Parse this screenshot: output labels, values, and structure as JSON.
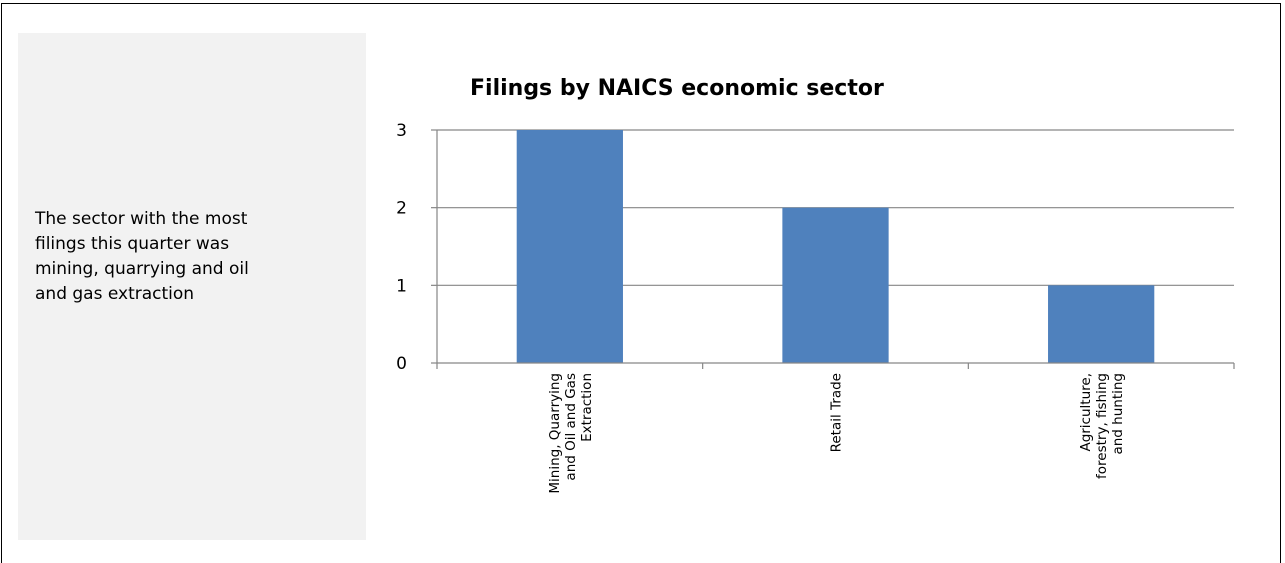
{
  "side_note": {
    "lines": [
      "The sector with the most",
      "filings this quarter was",
      "mining, quarrying and oil",
      "and gas extraction"
    ]
  },
  "chart_data": {
    "type": "bar",
    "title": "Filings by NAICS economic sector",
    "categories": [
      [
        "Mining, Quarrying",
        "and Oil and Gas",
        "Extraction"
      ],
      [
        "Retail Trade"
      ],
      [
        "Agriculture,",
        "forestry, fishing",
        "and hunting"
      ]
    ],
    "values": [
      3,
      2,
      1
    ],
    "ylim": [
      0,
      3
    ],
    "yticks": [
      "0",
      "1",
      "2",
      "3"
    ],
    "grid": true,
    "bar_color": "#4f81bd",
    "gridline_color": "#868686"
  }
}
